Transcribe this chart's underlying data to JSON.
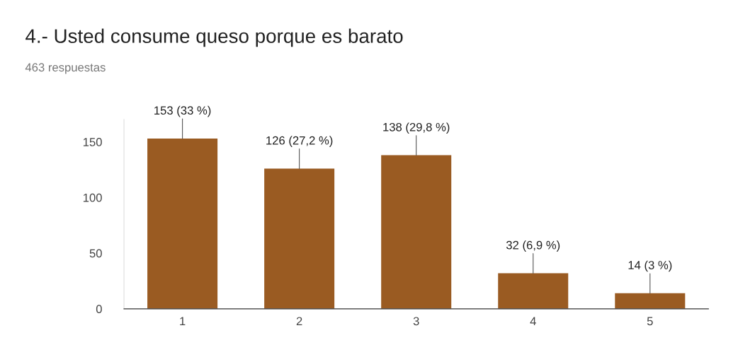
{
  "chart_data": {
    "type": "bar",
    "title": "4.- Usted consume queso porque es barato",
    "subtitle": "463 respuestas",
    "categories": [
      "1",
      "2",
      "3",
      "4",
      "5"
    ],
    "values": [
      153,
      126,
      138,
      32,
      14
    ],
    "value_labels": [
      "153 (33 %)",
      "126 (27,2 %)",
      "138 (29,8 %)",
      "32 (6,9 %)",
      "14 (3 %)"
    ],
    "color": "#9a5b22",
    "ylim": [
      0,
      170
    ],
    "yticks": [
      0,
      50,
      100,
      150
    ],
    "grid": false,
    "legend": false
  }
}
